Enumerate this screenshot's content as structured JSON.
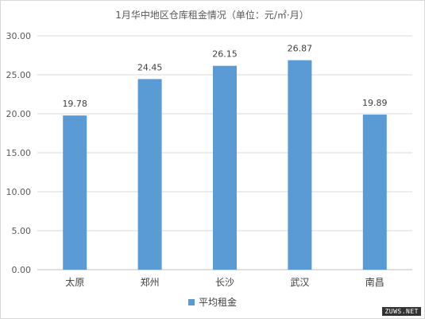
{
  "watermark": "ZUWS.NET",
  "chart_data": {
    "type": "bar",
    "title": "1月华中地区仓库租金情况（单位：元/㎡·月）",
    "categories": [
      "太原",
      "郑州",
      "长沙",
      "武汉",
      "南昌"
    ],
    "series": [
      {
        "name": "平均租金",
        "values": [
          19.78,
          24.45,
          26.15,
          26.87,
          19.89
        ],
        "value_labels": [
          "19.78",
          "24.45",
          "26.15",
          "26.87",
          "19.89"
        ]
      }
    ],
    "ylim": [
      0,
      30
    ],
    "yticks": [
      "0.00",
      "5.00",
      "10.00",
      "15.00",
      "20.00",
      "25.00",
      "30.00"
    ],
    "ytick_values": [
      0,
      5,
      10,
      15,
      20,
      25,
      30
    ],
    "grid": true,
    "legend_position": "bottom",
    "bar_color": "#5b9bd5"
  }
}
